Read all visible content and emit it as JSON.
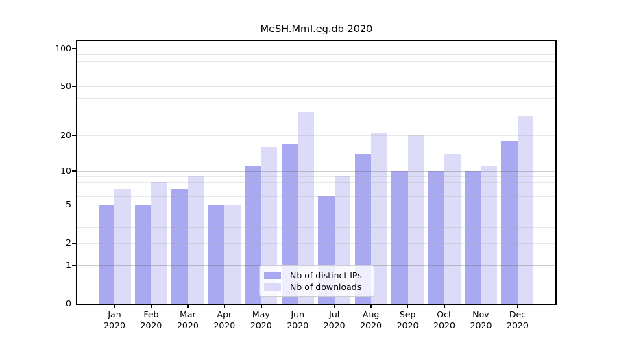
{
  "title": "MeSH.Mml.eg.db 2020",
  "chart_data": {
    "type": "bar",
    "title": "MeSH.Mml.eg.db 2020",
    "categories": [
      "Jan 2020",
      "Feb 2020",
      "Mar 2020",
      "Apr 2020",
      "May 2020",
      "Jun 2020",
      "Jul 2020",
      "Aug 2020",
      "Sep 2020",
      "Oct 2020",
      "Nov 2020",
      "Dec 2020"
    ],
    "month_labels": [
      "Jan",
      "Feb",
      "Mar",
      "Apr",
      "May",
      "Jun",
      "Jul",
      "Aug",
      "Sep",
      "Oct",
      "Nov",
      "Dec"
    ],
    "year_label": "2020",
    "series": [
      {
        "name": "Nb of distinct IPs",
        "color": "#a9a9f2",
        "values": [
          5,
          5,
          7,
          5,
          11,
          17,
          6,
          14,
          10,
          10,
          10,
          18
        ]
      },
      {
        "name": "Nb of downloads",
        "color": "#dcdcf8",
        "values": [
          7,
          8,
          9,
          5,
          16,
          31,
          9,
          21,
          20,
          14,
          11,
          29
        ]
      }
    ],
    "y_axis": {
      "scale": "log10(value+1)",
      "tick_values": [
        0,
        1,
        2,
        5,
        10,
        20,
        50,
        100
      ],
      "major_grid_values": [
        1,
        10,
        100
      ],
      "minor_grid_values": [
        2,
        3,
        4,
        5,
        6,
        7,
        8,
        9,
        20,
        30,
        40,
        50,
        60,
        70,
        80,
        90
      ],
      "ylim": [
        0,
        113
      ]
    },
    "xlabel": "",
    "ylabel": "",
    "grid": true,
    "legend_position": "lower center"
  },
  "colors": {
    "background": "#ffffff",
    "axis": "#000000",
    "major_grid": "rgba(105,105,105,0.35)",
    "minor_grid": "rgba(170,170,170,0.28)",
    "legend_border": "#cccccc"
  }
}
